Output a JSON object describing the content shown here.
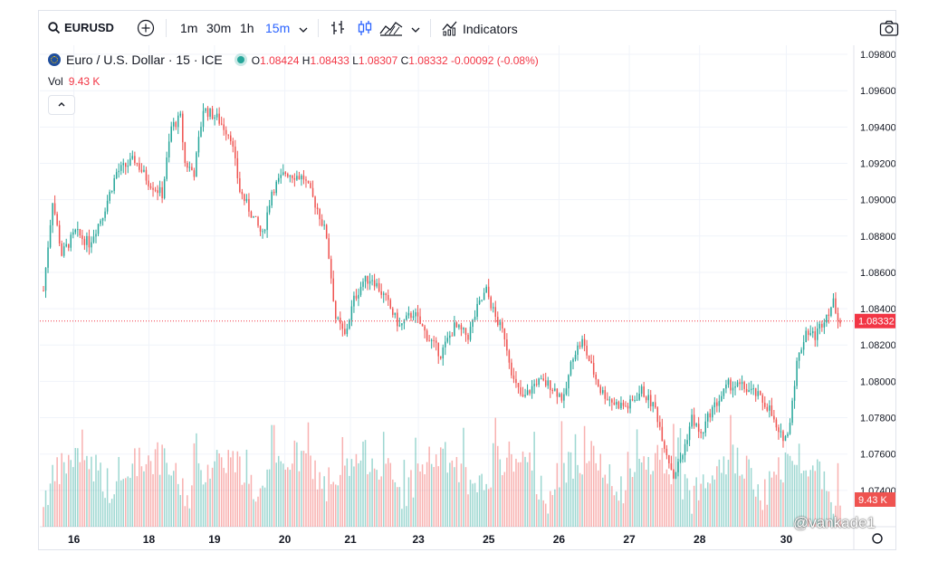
{
  "toolbar": {
    "symbol": "EURUSD",
    "intervals": [
      "1m",
      "30m",
      "1h",
      "15m"
    ],
    "active_interval": "15m",
    "indicators_label": "Indicators"
  },
  "legend": {
    "title": "Euro / U.S. Dollar · 15 · ICE",
    "open_label": "O",
    "open": "1.08424",
    "high_label": "H",
    "high": "1.08433",
    "low_label": "L",
    "low": "1.08307",
    "close_label": "C",
    "close": "1.08332",
    "change": "-0.00092 (-0.08%)"
  },
  "volume": {
    "label": "Vol",
    "value": "9.43 K"
  },
  "price_label": "1.08332",
  "volume_tag": "9.43 K",
  "watermark": "@vankade1",
  "colors": {
    "up": "#26a69a",
    "down": "#ef5350",
    "accent": "#2962ff",
    "price_line": "#f23645"
  },
  "chart_data": {
    "type": "candlestick",
    "x_ticks": [
      "16",
      "18",
      "19",
      "20",
      "21",
      "23",
      "25",
      "26",
      "27",
      "28",
      "30"
    ],
    "y_ticks": [
      "1.09800",
      "1.09600",
      "1.09400",
      "1.09200",
      "1.09000",
      "1.08800",
      "1.08600",
      "1.08400",
      "1.08200",
      "1.08000",
      "1.07800",
      "1.07600",
      "1.07400"
    ],
    "ylim": [
      1.072,
      1.0985
    ],
    "last_price": 1.08332,
    "price_path": [
      [
        0,
        1.085
      ],
      [
        4,
        1.09
      ],
      [
        8,
        1.087
      ],
      [
        14,
        1.0882
      ],
      [
        20,
        1.0876
      ],
      [
        26,
        1.0892
      ],
      [
        32,
        1.0915
      ],
      [
        40,
        1.0922
      ],
      [
        46,
        1.091
      ],
      [
        52,
        1.0903
      ],
      [
        56,
        1.094
      ],
      [
        60,
        1.0945
      ],
      [
        62,
        1.092
      ],
      [
        66,
        1.0915
      ],
      [
        70,
        1.095
      ],
      [
        76,
        1.0945
      ],
      [
        82,
        1.0935
      ],
      [
        86,
        1.0905
      ],
      [
        90,
        1.0895
      ],
      [
        96,
        1.088
      ],
      [
        100,
        1.0905
      ],
      [
        106,
        1.0915
      ],
      [
        114,
        1.0912
      ],
      [
        120,
        1.0895
      ],
      [
        124,
        1.088
      ],
      [
        128,
        1.0835
      ],
      [
        132,
        1.0825
      ],
      [
        136,
        1.0845
      ],
      [
        140,
        1.0855
      ],
      [
        144,
        1.0857
      ],
      [
        150,
        1.0845
      ],
      [
        156,
        1.083
      ],
      [
        162,
        1.0838
      ],
      [
        168,
        1.0825
      ],
      [
        174,
        1.0815
      ],
      [
        180,
        1.083
      ],
      [
        186,
        1.0825
      ],
      [
        190,
        1.084
      ],
      [
        194,
        1.085
      ],
      [
        198,
        1.0835
      ],
      [
        202,
        1.0825
      ],
      [
        206,
        1.08
      ],
      [
        210,
        1.079
      ],
      [
        216,
        1.08
      ],
      [
        222,
        1.0798
      ],
      [
        228,
        1.079
      ],
      [
        232,
        1.0815
      ],
      [
        236,
        1.0822
      ],
      [
        240,
        1.0808
      ],
      [
        244,
        1.0795
      ],
      [
        250,
        1.0788
      ],
      [
        256,
        1.0786
      ],
      [
        262,
        1.0795
      ],
      [
        268,
        1.0785
      ],
      [
        272,
        1.0765
      ],
      [
        276,
        1.0748
      ],
      [
        280,
        1.076
      ],
      [
        284,
        1.078
      ],
      [
        288,
        1.077
      ],
      [
        292,
        1.0783
      ],
      [
        296,
        1.079
      ],
      [
        300,
        1.0798
      ],
      [
        306,
        1.0797
      ],
      [
        312,
        1.0793
      ],
      [
        318,
        1.0785
      ],
      [
        322,
        1.077
      ],
      [
        326,
        1.077
      ],
      [
        330,
        1.081
      ],
      [
        334,
        1.0828
      ],
      [
        338,
        1.0825
      ],
      [
        342,
        1.0835
      ],
      [
        346,
        1.0843
      ],
      [
        349,
        1.0833
      ]
    ],
    "n_bars": 350
  }
}
